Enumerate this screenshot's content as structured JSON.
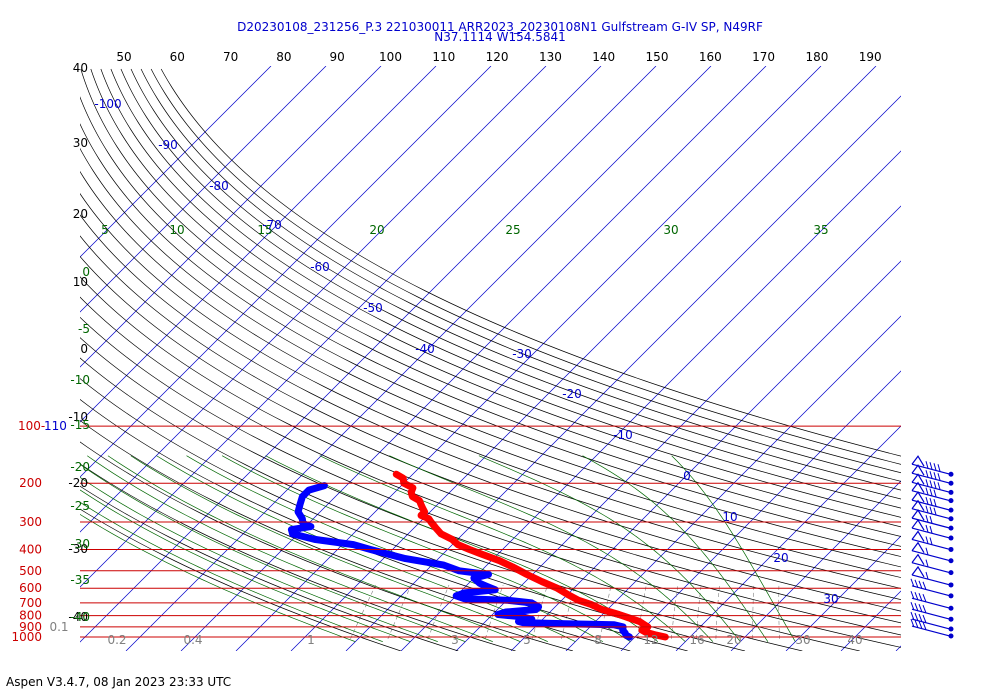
{
  "header": {
    "line1": "D20230108_231256_P.3 221030011 ARR2023_20230108N1 Gulfstream G-IV SP, N49RF",
    "line2": "N37.1114 W154.5841"
  },
  "footer": {
    "text": "Aspen V3.4.7, 08 Jan 2023  23:33 UTC"
  },
  "colors": {
    "isobar": "#cc0000",
    "isotherm": "#0000cc",
    "dry_adiabat": "#000000",
    "moist_adiabat": "#006600",
    "mixing_ratio": "#808080",
    "temperature": "#ff0000",
    "dewpoint": "#0000ff",
    "wind_barb": "#0000cc"
  },
  "chart_data": {
    "type": "line",
    "subtype": "skew-T log-P",
    "pressure_labels": [
      "100-110",
      "200",
      "300",
      "400",
      "500",
      "600",
      "700",
      "800",
      "900",
      "1000"
    ],
    "isobars_hPa": [
      110,
      200,
      300,
      400,
      500,
      600,
      700,
      800,
      900,
      1000
    ],
    "top_theta_labels": [
      "50",
      "60",
      "70",
      "80",
      "90",
      "100",
      "110",
      "120",
      "130",
      "140",
      "150",
      "160",
      "170",
      "180",
      "190"
    ],
    "left_labels": [
      "40",
      "30",
      "20",
      "10",
      "0",
      "-10",
      "-20",
      "-30",
      "-40"
    ],
    "moist_labels": [
      "5",
      "10",
      "15",
      "20",
      "25",
      "30",
      "35"
    ],
    "moist_left_labels": [
      "0",
      "-5",
      "-10",
      "-15",
      "-20",
      "-25",
      "-30",
      "-35",
      "-40"
    ],
    "isotherm_labels": [
      "-100",
      "-90",
      "-80",
      "-70",
      "-60",
      "-50",
      "-40",
      "-30",
      "-20",
      "-10",
      "0",
      "10",
      "20",
      "30"
    ],
    "mixing_ratio_labels": [
      "0.1",
      "0.2",
      "0.4",
      "1",
      "3",
      "5",
      "8",
      "12",
      "16",
      "20",
      "30",
      "40"
    ],
    "series": [
      {
        "name": "Temperature",
        "points": [
          {
            "p": 1000,
            "t": 15.5
          },
          {
            "p": 980,
            "t": 13.5
          },
          {
            "p": 950,
            "t": 11
          },
          {
            "p": 930,
            "t": 10
          },
          {
            "p": 900,
            "t": 10.5
          },
          {
            "p": 880,
            "t": 9.5
          },
          {
            "p": 850,
            "t": 8
          },
          {
            "p": 820,
            "t": 5.5
          },
          {
            "p": 790,
            "t": 3
          },
          {
            "p": 750,
            "t": -1
          },
          {
            "p": 710,
            "t": -4
          },
          {
            "p": 680,
            "t": -7
          },
          {
            "p": 640,
            "t": -10
          },
          {
            "p": 600,
            "t": -13
          },
          {
            "p": 560,
            "t": -17
          },
          {
            "p": 520,
            "t": -21
          },
          {
            "p": 480,
            "t": -25
          },
          {
            "p": 450,
            "t": -28.5
          },
          {
            "p": 420,
            "t": -33
          },
          {
            "p": 400,
            "t": -36
          },
          {
            "p": 380,
            "t": -39
          },
          {
            "p": 360,
            "t": -41
          },
          {
            "p": 340,
            "t": -44
          },
          {
            "p": 320,
            "t": -46
          },
          {
            "p": 300,
            "t": -48
          },
          {
            "p": 290,
            "t": -49
          },
          {
            "p": 280,
            "t": -51
          },
          {
            "p": 270,
            "t": -51
          },
          {
            "p": 260,
            "t": -52
          },
          {
            "p": 250,
            "t": -53
          },
          {
            "p": 240,
            "t": -54
          },
          {
            "p": 230,
            "t": -56
          },
          {
            "p": 220,
            "t": -57
          },
          {
            "p": 210,
            "t": -57.5
          },
          {
            "p": 200,
            "t": -60
          },
          {
            "p": 190,
            "t": -61
          },
          {
            "p": 182,
            "t": -63
          }
        ]
      },
      {
        "name": "Dewpoint",
        "points": [
          {
            "p": 1000,
            "t": 9
          },
          {
            "p": 980,
            "t": 8
          },
          {
            "p": 960,
            "t": 7.5
          },
          {
            "p": 930,
            "t": 6.5
          },
          {
            "p": 900,
            "t": 6
          },
          {
            "p": 880,
            "t": 4
          },
          {
            "p": 870,
            "t": -5
          },
          {
            "p": 860,
            "t": -13
          },
          {
            "p": 850,
            "t": -14
          },
          {
            "p": 830,
            "t": -12
          },
          {
            "p": 810,
            "t": -14
          },
          {
            "p": 790,
            "t": -19
          },
          {
            "p": 770,
            "t": -18
          },
          {
            "p": 750,
            "t": -13
          },
          {
            "p": 730,
            "t": -13
          },
          {
            "p": 700,
            "t": -15
          },
          {
            "p": 680,
            "t": -20
          },
          {
            "p": 670,
            "t": -28
          },
          {
            "p": 650,
            "t": -30
          },
          {
            "p": 630,
            "t": -29
          },
          {
            "p": 610,
            "t": -24
          },
          {
            "p": 590,
            "t": -26
          },
          {
            "p": 570,
            "t": -28
          },
          {
            "p": 540,
            "t": -30
          },
          {
            "p": 520,
            "t": -28
          },
          {
            "p": 500,
            "t": -34
          },
          {
            "p": 470,
            "t": -38
          },
          {
            "p": 440,
            "t": -46
          },
          {
            "p": 420,
            "t": -50
          },
          {
            "p": 400,
            "t": -54
          },
          {
            "p": 380,
            "t": -58
          },
          {
            "p": 360,
            "t": -66
          },
          {
            "p": 340,
            "t": -71
          },
          {
            "p": 325,
            "t": -72
          },
          {
            "p": 315,
            "t": -69
          },
          {
            "p": 305,
            "t": -71
          },
          {
            "p": 290,
            "t": -72
          },
          {
            "p": 270,
            "t": -74
          },
          {
            "p": 250,
            "t": -75
          },
          {
            "p": 230,
            "t": -76
          },
          {
            "p": 215,
            "t": -76
          },
          {
            "p": 205,
            "t": -74
          }
        ]
      }
    ],
    "wind_barbs": [
      {
        "p": 182
      },
      {
        "p": 200
      },
      {
        "p": 220
      },
      {
        "p": 240
      },
      {
        "p": 265
      },
      {
        "p": 290
      },
      {
        "p": 320
      },
      {
        "p": 355
      },
      {
        "p": 400
      },
      {
        "p": 450
      },
      {
        "p": 510
      },
      {
        "p": 580
      },
      {
        "p": 650
      },
      {
        "p": 740
      },
      {
        "p": 830
      },
      {
        "p": 920
      },
      {
        "p": 990
      }
    ]
  }
}
